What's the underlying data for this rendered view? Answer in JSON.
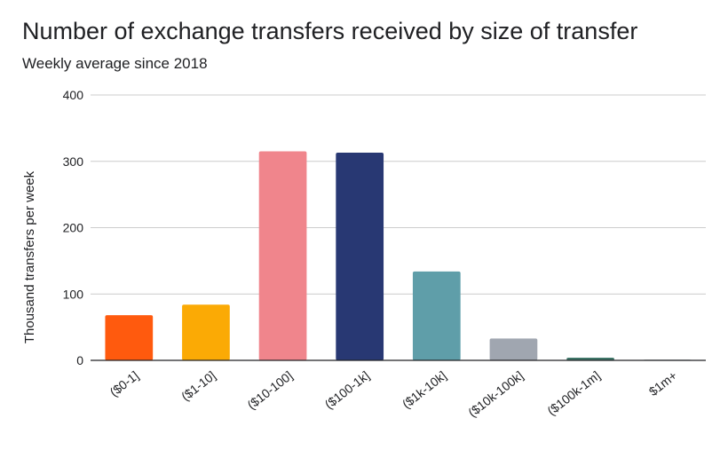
{
  "chart_data": {
    "type": "bar",
    "title": "Number of exchange transfers received by size of transfer",
    "subtitle": "Weekly average since 2018",
    "ylabel": "Thousand transfers per week",
    "xlabel": "",
    "ylim": [
      0,
      400
    ],
    "yticks": [
      0,
      100,
      200,
      300,
      400
    ],
    "grid": true,
    "categories": [
      "($0-1]",
      "($1-10]",
      "($10-100]",
      "($100-1k]",
      "($1k-10k]",
      "($10k-100k]",
      "($100k-1m]",
      "$1m+"
    ],
    "values": [
      68,
      84,
      315,
      313,
      134,
      33,
      4,
      1
    ],
    "colors": [
      "#ff5a0e",
      "#fbaa05",
      "#f0858c",
      "#283873",
      "#5f9ea9",
      "#a0a6b0",
      "#3f7668",
      "#8a9c9a"
    ]
  }
}
